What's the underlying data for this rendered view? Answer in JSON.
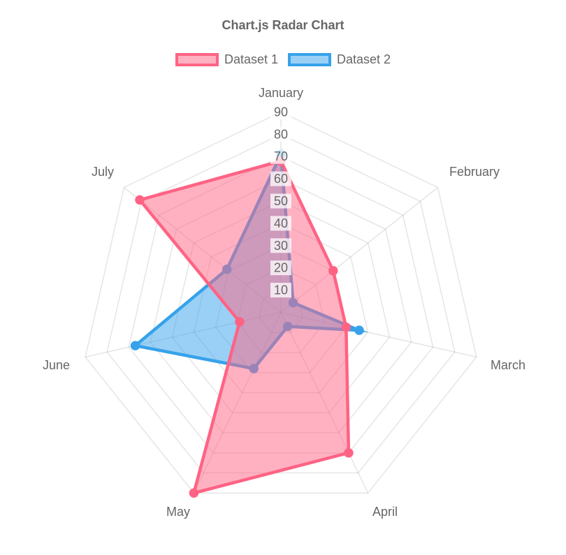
{
  "title": "Chart.js Radar Chart",
  "legend": [
    {
      "label": "Dataset 1",
      "border_color": "#FF6384",
      "fill_color": "rgba(255,99,132,0.5)"
    },
    {
      "label": "Dataset 2",
      "border_color": "#36A2EB",
      "fill_color": "rgba(54,162,235,0.5)"
    }
  ],
  "chart_data": {
    "type": "radar",
    "categories": [
      "January",
      "February",
      "March",
      "April",
      "May",
      "June",
      "July"
    ],
    "series": [
      {
        "name": "Dataset 1",
        "values": [
          68,
          30,
          30,
          70,
          90,
          19,
          81
        ],
        "border_color": "#FF6384",
        "fill_color": "rgba(255,99,132,0.5)"
      },
      {
        "name": "Dataset 2",
        "values": [
          71,
          7,
          36,
          7,
          28,
          67,
          31
        ],
        "border_color": "#36A2EB",
        "fill_color": "rgba(54,162,235,0.5)"
      }
    ],
    "scale": {
      "min": 0,
      "max": 90,
      "step": 10,
      "ticks": [
        "10",
        "20",
        "30",
        "40",
        "50",
        "60",
        "70",
        "80",
        "90"
      ]
    },
    "grid": true,
    "legend_position": "top",
    "title": "Chart.js Radar Chart"
  },
  "styles": {
    "text_color": "#666666",
    "grid_color": "rgba(0,0,0,0.1)",
    "tick_backdrop_color": "rgba(255,255,255,0.75)",
    "background": "#FFFFFF"
  }
}
